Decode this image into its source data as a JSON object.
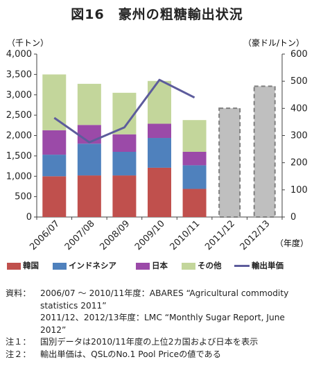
{
  "title": "図16　豪州の粗糖輸出状況",
  "chart_data": {
    "type": "bar",
    "categories": [
      "2006/07",
      "2007/08",
      "2008/09",
      "2009/10",
      "2010/11",
      "2011/12",
      "2012/13"
    ],
    "series": [
      {
        "name": "韓国",
        "values": [
          1000,
          1020,
          1020,
          1210,
          690,
          null,
          null
        ],
        "color": "#c0504d"
      },
      {
        "name": "インドネシア",
        "values": [
          530,
          780,
          580,
          730,
          580,
          null,
          null
        ],
        "color": "#4f81bd"
      },
      {
        "name": "日本",
        "values": [
          600,
          460,
          430,
          350,
          330,
          null,
          null
        ],
        "color": "#9b4aa8"
      },
      {
        "name": "その他",
        "values": [
          1370,
          1010,
          1020,
          1050,
          780,
          null,
          null
        ],
        "color": "#c3d69b"
      }
    ],
    "totals": [
      null,
      null,
      null,
      null,
      null,
      2670,
      3210
    ],
    "totals_color": "#bfbfbf",
    "line": {
      "name": "輸出単価",
      "values": [
        365,
        275,
        330,
        505,
        440,
        null,
        null
      ],
      "color": "#5d5c9c",
      "axis": "right"
    },
    "ylabel": "（千トン）",
    "ylabel_right": "（豪ドル/トン）",
    "xlabel": "（年度）",
    "ylim": [
      0,
      4000
    ],
    "ylim_right": [
      0,
      600
    ],
    "yticks": [
      "0",
      "500",
      "1,000",
      "1,500",
      "2,000",
      "2,500",
      "3,000",
      "3,500",
      "4,000"
    ],
    "yticks_right": [
      "0",
      "100",
      "200",
      "300",
      "400",
      "500",
      "600"
    ],
    "legend_position": "bottom",
    "grid": false
  },
  "notes": [
    {
      "label": "資料：",
      "lines": [
        "2006/07 ～ 2010/11年度：ABARES “Agricultural commodity statistics 2011”",
        "2011/12、2012/13年度：LMC “Monthly Sugar Report, June 2012”"
      ]
    },
    {
      "label": "注１：",
      "lines": [
        "国別データは2010/11年度の上位2カ国および日本を表示"
      ]
    },
    {
      "label": "注２：",
      "lines": [
        "輸出単価は、QSLのNo.1 Pool Priceの値である"
      ]
    }
  ]
}
